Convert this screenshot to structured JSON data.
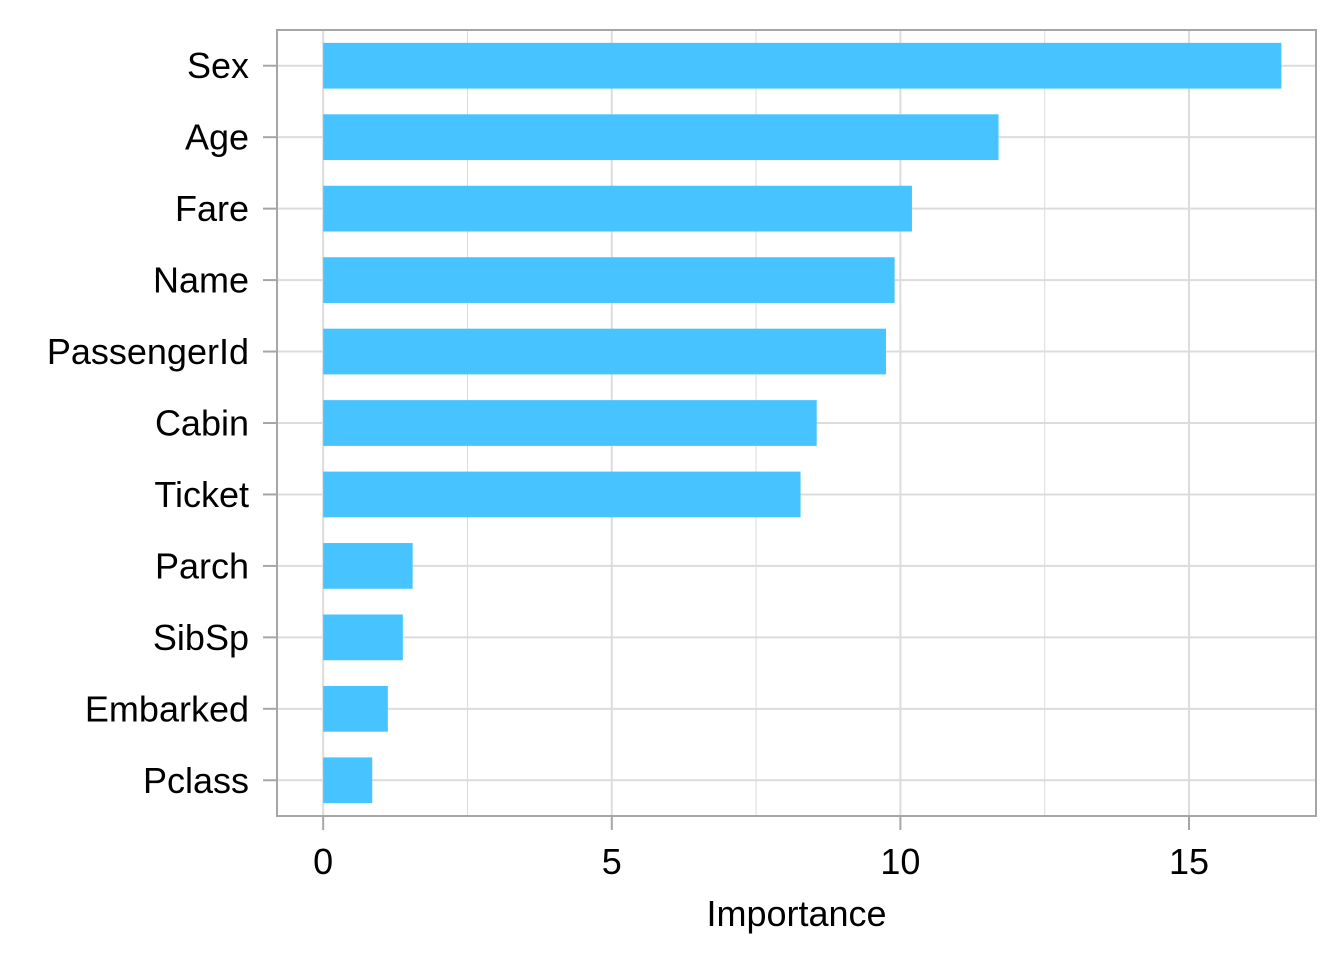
{
  "chart_data": {
    "type": "bar",
    "orientation": "horizontal",
    "categories": [
      "Sex",
      "Age",
      "Fare",
      "Name",
      "PassengerId",
      "Cabin",
      "Ticket",
      "Parch",
      "SibSp",
      "Embarked",
      "Pclass"
    ],
    "values": [
      16.6,
      11.7,
      10.2,
      9.9,
      9.75,
      8.55,
      8.27,
      1.55,
      1.38,
      1.12,
      0.85
    ],
    "xlabel": "Importance",
    "ylabel": "",
    "title": "",
    "xlim": [
      -0.8,
      17.2
    ],
    "xticks": [
      0,
      5,
      10,
      15
    ],
    "xtick_labels": [
      "0",
      "5",
      "10",
      "15"
    ],
    "grid": true,
    "bar_color": "#47C3FF",
    "grid_color": "#DCDCDC",
    "frame_color": "#A6A6A6"
  }
}
